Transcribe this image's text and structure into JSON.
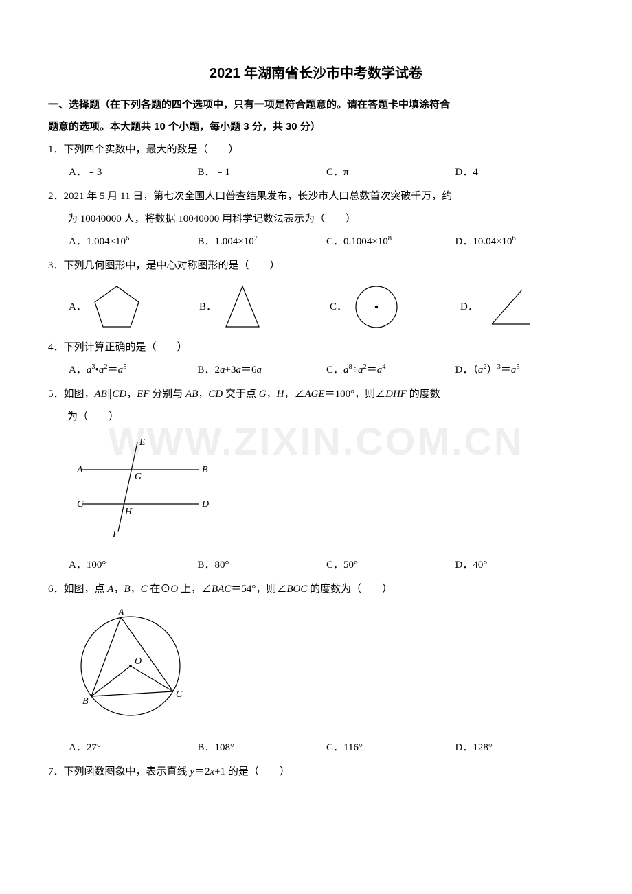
{
  "title": "2021 年湖南省长沙市中考数学试卷",
  "section_header_l1": "一、选择题（在下列各题的四个选项中，只有一项是符合题意的。请在答题卡中填涂符合",
  "section_header_l2": "题意的选项。本大题共 10 个小题，每小题 3 分，共 30 分）",
  "watermark": "WWW.ZIXIN.COM.CN",
  "q1": {
    "text": "1．下列四个实数中，最大的数是（　　）",
    "a": "A．﹣3",
    "b": "B．﹣1",
    "c": "C．π",
    "d": "D．4"
  },
  "q2": {
    "line1": "2．2021 年 5 月 11 日，第七次全国人口普查结果发布，长沙市人口总数首次突破千万，约",
    "line2": "为 10040000 人，将数据 10040000 用科学记数法表示为（　　）",
    "a_pre": "A．1.004×10",
    "a_sup": "6",
    "b_pre": "B．1.004×10",
    "b_sup": "7",
    "c_pre": "C．0.1004×10",
    "c_sup": "8",
    "d_pre": "D．10.04×10",
    "d_sup": "6"
  },
  "q3": {
    "text": "3．下列几何图形中，是中心对称图形的是（　　）",
    "a": "A．",
    "b": "B．",
    "c": "C．",
    "d": "D．",
    "colors": {
      "stroke": "#000000",
      "fill": "none"
    }
  },
  "q4": {
    "text": "4．下列计算正确的是（　　）",
    "a_html": "A．<span class='italic'>a</span><sup>3</sup>•<span class='italic'>a</span><sup>2</sup>＝<span class='italic'>a</span><sup>5</sup>",
    "b_html": "B．2<span class='italic'>a</span>+3<span class='italic'>a</span>＝6<span class='italic'>a</span>",
    "c_html": "C．<span class='italic'>a</span><sup>8</sup>÷<span class='italic'>a</span><sup>2</sup>＝<span class='italic'>a</span><sup>4</sup>",
    "d_html": "D．（<span class='italic'>a</span><sup>2</sup>）<sup>3</sup>＝<span class='italic'>a</span><sup>5</sup>"
  },
  "q5": {
    "line1_html": "5．如图，<span class='italic'>AB</span>∥<span class='italic'>CD</span>，<span class='italic'>EF</span> 分别与 <span class='italic'>AB</span>，<span class='italic'>CD</span> 交于点 <span class='italic'>G</span>，<span class='italic'>H</span>，∠<span class='italic'>AGE</span>＝100°，则∠<span class='italic'>DHF</span> 的度数",
    "line2": "为（　　）",
    "a": "A．100°",
    "b": "B．80°",
    "c": "C．50°",
    "d": "D．40°",
    "labels": {
      "A": "A",
      "B": "B",
      "C": "C",
      "D": "D",
      "E": "E",
      "F": "F",
      "G": "G",
      "H": "H"
    }
  },
  "q6": {
    "text_html": "6．如图，点 <span class='italic'>A</span>，<span class='italic'>B</span>，<span class='italic'>C</span> 在⊙<span class='italic'>O</span> 上，∠<span class='italic'>BAC</span>＝54°，则∠<span class='italic'>BOC</span> 的度数为（　　）",
    "a": "A．27°",
    "b": "B．108°",
    "c": "C．116°",
    "d": "D．128°",
    "labels": {
      "A": "A",
      "B": "B",
      "C": "C",
      "O": "O"
    }
  },
  "q7": {
    "text_html": "7．下列函数图象中，表示直线 <span class='italic'>y</span>＝2<span class='italic'>x</span>+1 的是（　　）"
  }
}
